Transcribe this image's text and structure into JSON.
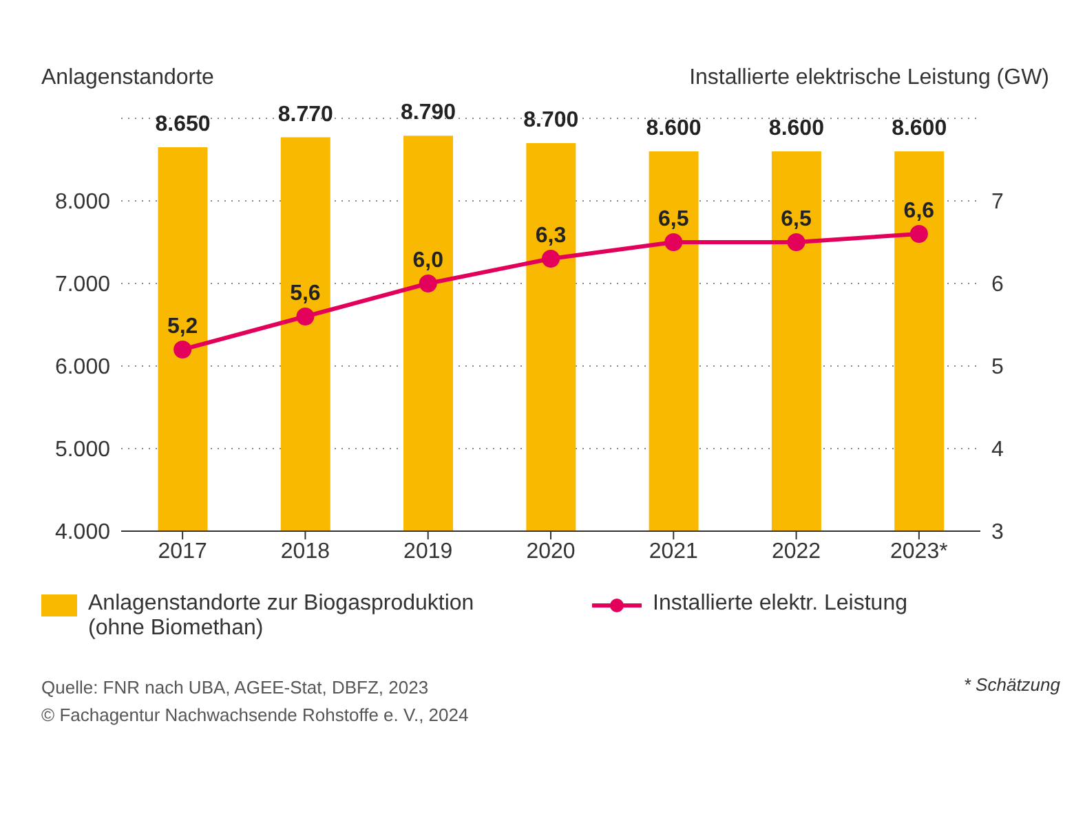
{
  "chart_data": {
    "type": "bar",
    "ylabel": "Anlagenstandorte",
    "y2label": "Installierte elektrische Leistung (GW)",
    "categories": [
      "2017",
      "2018",
      "2019",
      "2020",
      "2021",
      "2022",
      "2023*"
    ],
    "series": [
      {
        "name": "Anlagenstandorte zur Biogasproduktion (ohne Biomethan)",
        "color": "#f9b900",
        "values": [
          8650,
          8770,
          8790,
          8700,
          8600,
          8600,
          8600
        ],
        "value_labels": [
          "8.650",
          "8.770",
          "8.790",
          "8.700",
          "8.600",
          "8.600",
          "8.600"
        ]
      },
      {
        "name": "Installierte elektr. Leistung",
        "type": "line",
        "axis": "y2",
        "color": "#e2005a",
        "marker": "circle",
        "values": [
          5.2,
          5.6,
          6.0,
          6.3,
          6.5,
          6.5,
          6.6
        ],
        "value_labels": [
          "5,2",
          "5,6",
          "6,0",
          "6,3",
          "6,5",
          "6,5",
          "6,6"
        ]
      }
    ],
    "ylim": [
      4000,
      9000
    ],
    "yticks": [
      {
        "value": 4000,
        "label": "4.000"
      },
      {
        "value": 5000,
        "label": "5.000"
      },
      {
        "value": 6000,
        "label": "6.000"
      },
      {
        "value": 7000,
        "label": "7.000"
      },
      {
        "value": 8000,
        "label": "8.000"
      }
    ],
    "y2lim": [
      3,
      8
    ],
    "y2ticks": [
      3,
      4,
      5,
      6,
      7
    ],
    "grid": "y",
    "legend": "bottom",
    "annotations": [
      "* Schätzung",
      "Quelle: FNR nach UBA, AGEE-Stat, DBFZ, 2023",
      "© Fachagentur Nachwachsende Rohstoffe e. V., 2024"
    ]
  }
}
